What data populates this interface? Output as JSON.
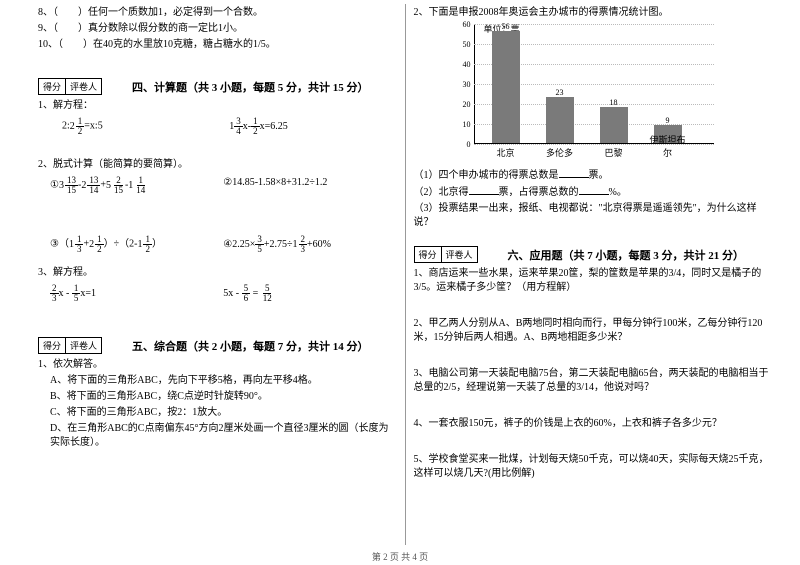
{
  "left": {
    "q8": "8、（　　）任何一个质数加1，必定得到一个合数。",
    "q9": "9、（　　）真分数除以假分数的商一定比1小。",
    "q10": "10、（　　）在40克的水里放10克糖，糖占糖水的1/5。",
    "score": {
      "c1": "得分",
      "c2": "评卷人"
    },
    "s4_title": "四、计算题（共 3 小题，每题 5 分，共计 15 分）",
    "s4_q1": "1、解方程：",
    "s4_q1a_pre": "2:",
    "s4_q1a_mid": "=x:5",
    "s4_q1b_pre": "1",
    "s4_q1b_mid": "x-",
    "s4_q1b_suf": "x=6.25",
    "s4_q2": "2、脱式计算（能简算的要简算）。",
    "s4_q2a_lead": "①",
    "s4_q2b": "②14.85-1.58×8+31.2÷1.2",
    "s4_q2c_lead": "③（",
    "s4_q2c_mid": "）÷（2-",
    "s4_q2c_end": "）",
    "s4_q2d_lead": "④2.25×",
    "s4_q2d_mid": "+2.75÷",
    "s4_q2d_end": "+60%",
    "s4_q3": "3、解方程。",
    "s4_q3a_mid": "x - ",
    "s4_q3a_suf": "x=1",
    "s4_q3b_pre": "5x - ",
    "s4_q3b_mid": " = ",
    "s5_title": "五、综合题（共 2 小题，每题 7 分，共计 14 分）",
    "s5_q1": "1、依次解答。",
    "s5_q1a": "A、将下面的三角形ABC，先向下平移5格，再向左平移4格。",
    "s5_q1b": "B、将下面的三角形ABC，绕C点逆时针旋转90°。",
    "s5_q1c": "C、将下面的三角形ABC，按2：1放大。",
    "s5_q1d": "D、在三角形ABC的C点南偏东45°方向2厘米处画一个直径3厘米的圆（长度为实际长度）。"
  },
  "right": {
    "q2": "2、下面是申报2008年奥运会主办城市的得票情况统计图。",
    "chart": {
      "unit": "单位：票",
      "ylim": [
        0,
        60
      ],
      "ytick_step": 10,
      "bar_color": "#7a7a7a",
      "categories": [
        "北京",
        "多伦多",
        "巴黎",
        "伊斯坦布尔"
      ],
      "values": [
        56,
        23,
        18,
        9
      ],
      "x_positions": [
        38,
        92,
        146,
        200
      ]
    },
    "sub1_a": "（1）四个申办城市的得票总数是",
    "sub1_b": "票。",
    "sub2_a": "（2）北京得",
    "sub2_b": "票，占得票总数的",
    "sub2_c": "%。",
    "sub3": "（3）投票结果一出来，报纸、电视都说：\"北京得票是遥遥领先\"，为什么这样说？",
    "score": {
      "c1": "得分",
      "c2": "评卷人"
    },
    "s6_title": "六、应用题（共 7 小题，每题 3 分，共计 21 分）",
    "s6_q1": "1、商店运来一些水果，运来苹果20筐，梨的筐数是苹果的3/4，同时又是橘子的3/5。运来橘子多少筐？（用方程解）",
    "s6_q2": "2、甲乙两人分别从A、B两地同时相向而行，甲每分钟行100米，乙每分钟行120米，15分钟后两人相遇。A、B两地相距多少米？",
    "s6_q3": "3、电脑公司第一天装配电脑75台，第二天装配电脑65台，两天装配的电脑相当于总量的2/5，经理说第一天装了总量的3/14，他说对吗？",
    "s6_q4": "4、一套衣服150元，裤子的价钱是上衣的60%，上衣和裤子各多少元？",
    "s6_q5": "5、学校食堂买来一批煤，计划每天烧50千克，可以烧40天，实际每天烧25千克，这样可以烧几天?(用比例解)"
  },
  "footer": "第 2 页 共 4 页",
  "fracs": {
    "2_1_2": {
      "w": "2",
      "n": "1",
      "d": "2"
    },
    "3_4": {
      "n": "3",
      "d": "4"
    },
    "1_2": {
      "n": "1",
      "d": "2"
    },
    "3_13_15": {
      "w": "3",
      "n": "13",
      "d": "15"
    },
    "2_13_14": {
      "w": "2",
      "n": "13",
      "d": "14"
    },
    "5_2_15": {
      "w": "5",
      "n": "2",
      "d": "15"
    },
    "1_1_14": {
      "w": "1",
      "n": "1",
      "d": "14"
    },
    "1_1_3": {
      "w": "1",
      "n": "1",
      "d": "3"
    },
    "2_1_2b": {
      "w": "2",
      "n": "1",
      "d": "2"
    },
    "1_1_2": {
      "w": "1",
      "n": "1",
      "d": "2"
    },
    "3_5": {
      "n": "3",
      "d": "5"
    },
    "1_2_3": {
      "w": "1",
      "n": "2",
      "d": "3"
    },
    "2_3": {
      "n": "2",
      "d": "3"
    },
    "1_5": {
      "n": "1",
      "d": "5"
    },
    "5_6": {
      "n": "5",
      "d": "6"
    },
    "5_12": {
      "n": "5",
      "d": "12"
    }
  }
}
